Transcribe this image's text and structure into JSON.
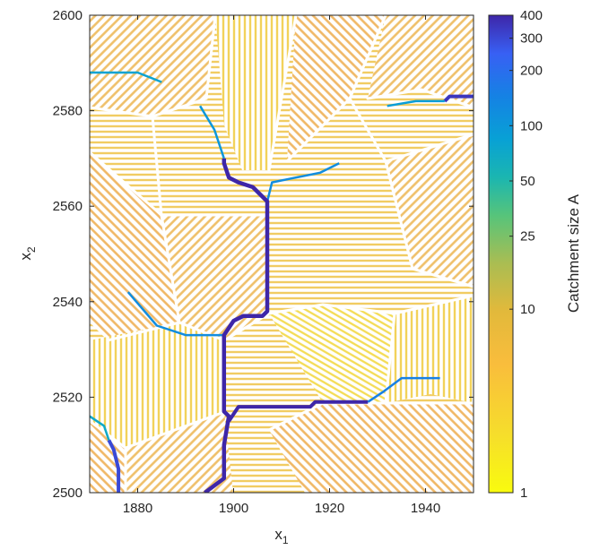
{
  "chart_data": {
    "type": "heatmap",
    "xlabel": "x",
    "xlabel_sub": "1",
    "ylabel": "x",
    "ylabel_sub": "2",
    "xlim": [
      1870,
      1950
    ],
    "ylim": [
      2500,
      2600
    ],
    "x_ticks": [
      1880,
      1900,
      1920,
      1940
    ],
    "y_ticks": [
      2500,
      2520,
      2540,
      2560,
      2580,
      2600
    ],
    "grid": false,
    "colorbar": {
      "label": "Catchment size A",
      "scale": "log",
      "range": [
        1,
        400
      ],
      "ticks": [
        1,
        10,
        25,
        50,
        100,
        200,
        300,
        400
      ],
      "colormap": "parula"
    },
    "main_channel": {
      "catchment": 400,
      "path": [
        [
          1894,
          2500
        ],
        [
          1898,
          2503
        ],
        [
          1898,
          2510
        ],
        [
          1899,
          2516
        ],
        [
          1898,
          2517
        ],
        [
          1898,
          2533
        ],
        [
          1900,
          2536
        ],
        [
          1902,
          2537
        ],
        [
          1906,
          2537
        ],
        [
          1907,
          2538
        ],
        [
          1907,
          2561
        ],
        [
          1904,
          2564
        ],
        [
          1901,
          2565
        ],
        [
          1899,
          2566
        ],
        [
          1898,
          2569
        ],
        [
          1898,
          2570
        ]
      ]
    },
    "tributaries": [
      {
        "catchment": 400,
        "path": [
          [
            1899,
            2515
          ],
          [
            1901,
            2518
          ],
          [
            1916,
            2518
          ],
          [
            1917,
            2519
          ],
          [
            1928,
            2519
          ]
        ]
      },
      {
        "catchment": 300,
        "path": [
          [
            1876,
            2500
          ],
          [
            1876,
            2505
          ],
          [
            1875,
            2509
          ],
          [
            1874,
            2511
          ]
        ]
      },
      {
        "catchment": 350,
        "path": [
          [
            1950,
            2583
          ],
          [
            1945,
            2583
          ],
          [
            1944,
            2582
          ]
        ]
      },
      {
        "catchment": 150,
        "path": [
          [
            1928,
            2519
          ],
          [
            1931,
            2521
          ],
          [
            1935,
            2524
          ],
          [
            1943,
            2524
          ]
        ]
      },
      {
        "catchment": 120,
        "path": [
          [
            1898,
            2533
          ],
          [
            1890,
            2533
          ],
          [
            1884,
            2535
          ],
          [
            1878,
            2542
          ]
        ]
      },
      {
        "catchment": 120,
        "path": [
          [
            1907,
            2561
          ],
          [
            1908,
            2565
          ],
          [
            1913,
            2566
          ],
          [
            1918,
            2567
          ],
          [
            1922,
            2569
          ]
        ]
      },
      {
        "catchment": 100,
        "path": [
          [
            1898,
            2570
          ],
          [
            1896,
            2576
          ],
          [
            1893,
            2581
          ]
        ]
      },
      {
        "catchment": 80,
        "path": [
          [
            1870,
            2588
          ],
          [
            1880,
            2588
          ],
          [
            1885,
            2586
          ]
        ]
      },
      {
        "catchment": 70,
        "path": [
          [
            1874,
            2511
          ],
          [
            1873,
            2514
          ],
          [
            1870,
            2516
          ]
        ]
      },
      {
        "catchment": 90,
        "path": [
          [
            1944,
            2582
          ],
          [
            1938,
            2582
          ],
          [
            1932,
            2581
          ]
        ]
      }
    ]
  }
}
